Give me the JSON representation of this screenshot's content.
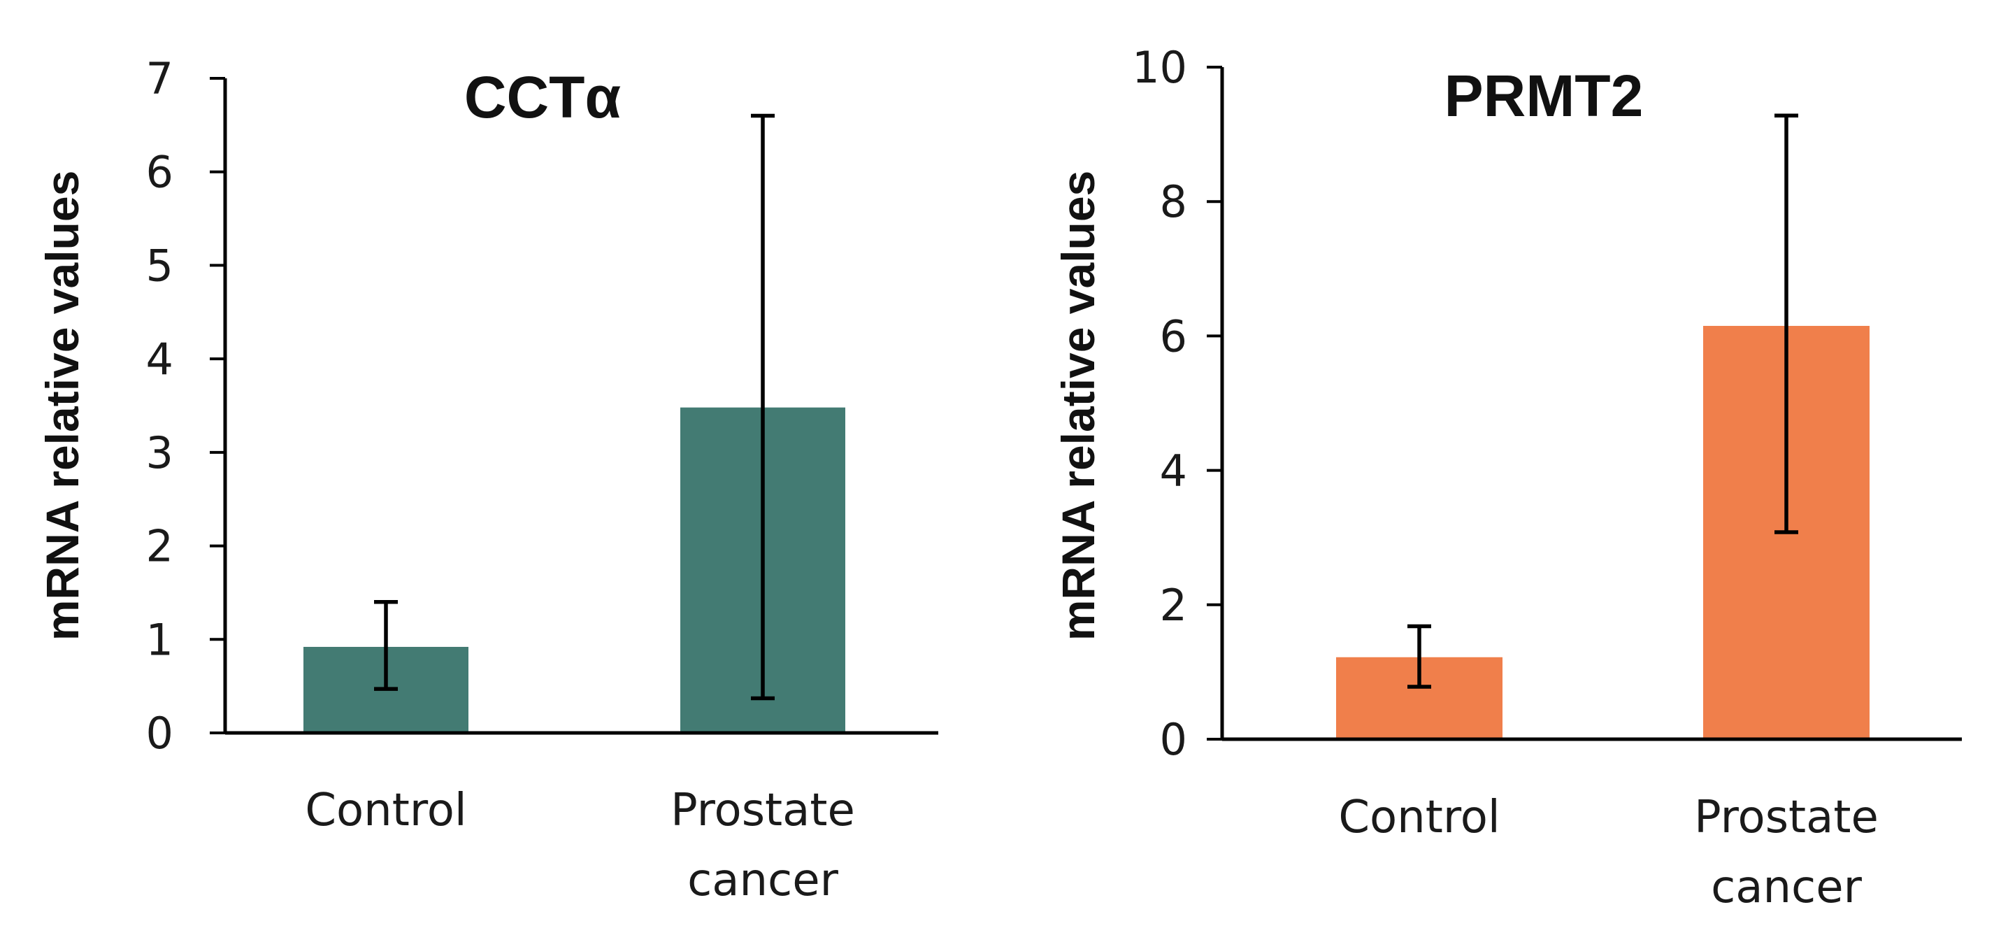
{
  "chart_data": [
    {
      "type": "bar",
      "title": "CCTα",
      "ylabel": "mRNA relative values",
      "xlabel": "",
      "categories": [
        "Control",
        "Prostate cancer"
      ],
      "values": [
        0.92,
        3.48
      ],
      "error_low": [
        0.47,
        0.37
      ],
      "error_high": [
        1.4,
        6.6
      ],
      "ylim": [
        0,
        7
      ],
      "yticks": [
        0,
        1,
        2,
        3,
        4,
        5,
        6,
        7
      ],
      "color": "#437b73",
      "grid": false,
      "legend": "none"
    },
    {
      "type": "bar",
      "title": "PRMT2",
      "ylabel": "mRNA relative values",
      "xlabel": "",
      "categories": [
        "Control",
        "Prostate cancer"
      ],
      "values": [
        1.22,
        6.15
      ],
      "error_low": [
        0.78,
        3.08
      ],
      "error_high": [
        1.68,
        9.28
      ],
      "ylim": [
        0,
        10
      ],
      "yticks": [
        0,
        2,
        4,
        6,
        8,
        10
      ],
      "color": "#f07f4b",
      "grid": false,
      "legend": "none"
    }
  ]
}
